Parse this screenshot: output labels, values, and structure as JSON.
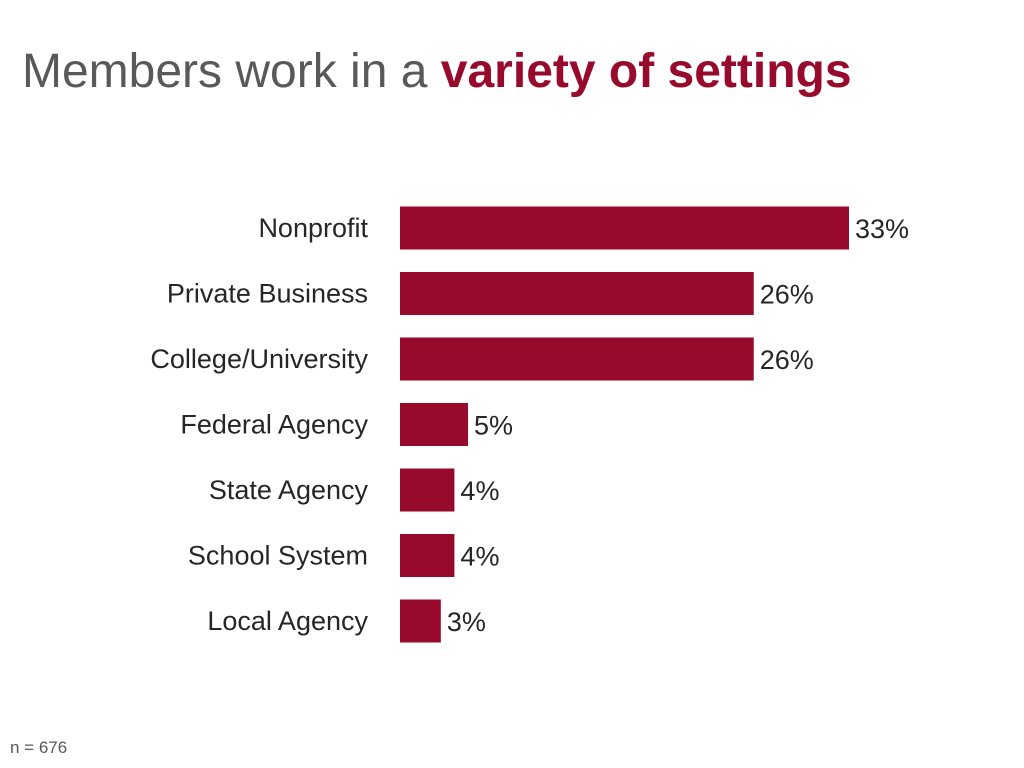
{
  "title": {
    "prefix": "Members work in a ",
    "emphasis": "variety of settings"
  },
  "colors": {
    "bar": "#970A2C",
    "title_text": "#595959",
    "label_text": "#262626"
  },
  "chart_data": {
    "type": "bar",
    "orientation": "horizontal",
    "title": "Members work in a variety of settings",
    "categories": [
      "Nonprofit",
      "Private Business",
      "College/University",
      "Federal Agency",
      "State Agency",
      "School System",
      "Local Agency"
    ],
    "values": [
      33,
      26,
      26,
      5,
      4,
      4,
      3
    ],
    "value_labels": [
      "33%",
      "26%",
      "26%",
      "5%",
      "4%",
      "4%",
      "3%"
    ],
    "unit": "%",
    "xlim": [
      0,
      33
    ],
    "grid": false,
    "legend": "none"
  },
  "note": "n = 676"
}
